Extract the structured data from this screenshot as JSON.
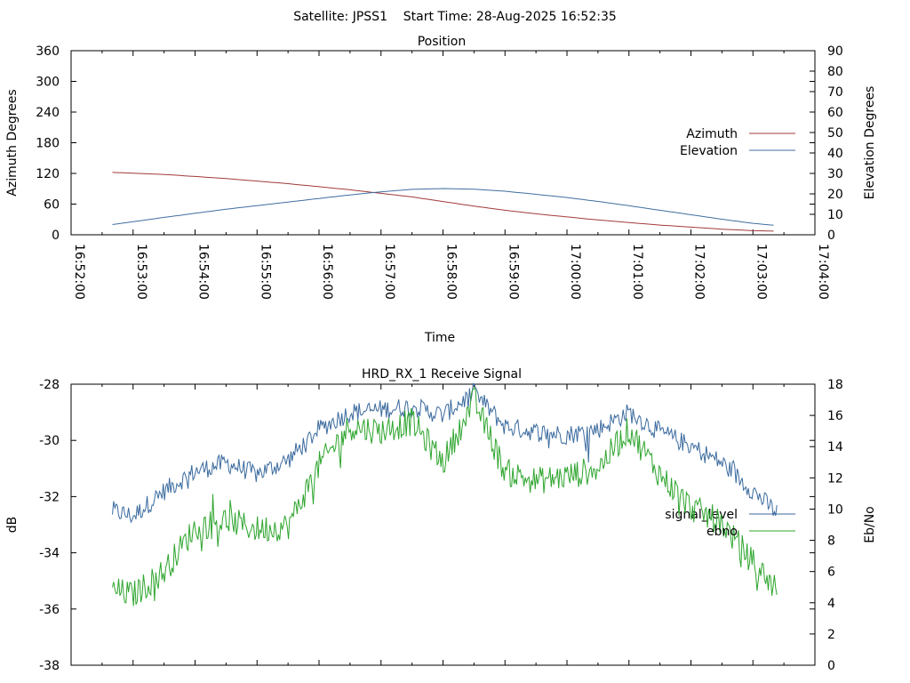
{
  "header": {
    "title": "Satellite: JPSS1    Start Time: 28-Aug-2025 16:52:35"
  },
  "chart_data": [
    {
      "type": "line",
      "title": "Position",
      "xlabel": "Time",
      "ylabel": "Azimuth Degrees",
      "y2label": "Elevation Degrees",
      "x_ticks": [
        "16:52:00",
        "16:53:00",
        "16:54:00",
        "16:55:00",
        "16:56:00",
        "16:57:00",
        "16:58:00",
        "16:59:00",
        "17:00:00",
        "17:01:00",
        "17:02:00",
        "17:03:00",
        "17:04:00"
      ],
      "xlim": [
        "16:52:00",
        "17:04:00"
      ],
      "ylim": [
        0,
        360
      ],
      "y_ticks": [
        "0",
        "60",
        "120",
        "180",
        "240",
        "300",
        "360"
      ],
      "y2lim": [
        0,
        90
      ],
      "y2_ticks": [
        "0",
        "10",
        "20",
        "30",
        "40",
        "50",
        "60",
        "70",
        "80",
        "90"
      ],
      "legend": "right",
      "x": [
        "16:52:40",
        "16:53:30",
        "16:54:30",
        "16:55:30",
        "16:56:30",
        "16:57:00",
        "16:57:30",
        "16:58:00",
        "16:58:30",
        "16:59:00",
        "16:59:30",
        "17:00:00",
        "17:00:30",
        "17:01:00",
        "17:01:30",
        "17:02:00",
        "17:02:30",
        "17:03:00",
        "17:03:24"
      ],
      "series": [
        {
          "name": "Azimuth",
          "color": "#a33a3a",
          "axis": "y",
          "values": [
            122,
            118,
            110,
            100,
            88,
            81,
            74,
            65,
            56,
            48,
            41,
            35,
            29,
            24,
            19,
            15,
            11,
            8,
            7
          ]
        },
        {
          "name": "Elevation",
          "color": "#3f6fa0",
          "axis": "y2",
          "values": [
            5,
            8.5,
            12.5,
            16,
            19.5,
            21,
            22.2,
            22.6,
            22.3,
            21.3,
            19.8,
            18.2,
            16.3,
            14.2,
            12,
            9.8,
            7.6,
            5.6,
            4.5
          ]
        }
      ]
    },
    {
      "type": "line",
      "title": "HRD_RX_1 Receive Signal",
      "xlabel": "",
      "ylabel": "dB",
      "y2label": "Eb/No",
      "ylim": [
        -38,
        -28
      ],
      "y_ticks": [
        "-28",
        "-30",
        "-32",
        "-34",
        "-36",
        "-38"
      ],
      "y2lim": [
        0,
        18
      ],
      "y2_ticks": [
        "0",
        "2",
        "4",
        "6",
        "8",
        "10",
        "12",
        "14",
        "16",
        "18"
      ],
      "legend": "right",
      "x": [
        "16:52:40",
        "16:53:00",
        "16:53:30",
        "16:54:00",
        "16:54:30",
        "16:55:00",
        "16:55:30",
        "16:56:00",
        "16:56:30",
        "16:57:00",
        "16:57:30",
        "16:58:00",
        "16:58:30",
        "16:59:00",
        "16:59:30",
        "17:00:00",
        "17:00:30",
        "17:01:00",
        "17:01:30",
        "17:02:00",
        "17:02:30",
        "17:03:00",
        "17:03:24"
      ],
      "series": [
        {
          "name": "signal_level",
          "color": "#3a6a9e",
          "axis": "y",
          "values": [
            -32.5,
            -32.7,
            -31.8,
            -31.1,
            -30.8,
            -31.2,
            -30.7,
            -29.6,
            -29.0,
            -28.9,
            -28.8,
            -29.1,
            -28.3,
            -29.5,
            -29.7,
            -29.8,
            -29.6,
            -29.0,
            -29.7,
            -30.2,
            -30.8,
            -31.8,
            -32.6
          ],
          "noise": 0.35
        },
        {
          "name": "ebno",
          "color": "#2ea52e",
          "axis": "y2",
          "values": [
            4.8,
            4.5,
            6.0,
            8.8,
            9.3,
            8.7,
            8.9,
            12.8,
            15.3,
            15.0,
            15.6,
            13.0,
            17.0,
            12.4,
            11.8,
            12.1,
            12.6,
            15.1,
            12.2,
            10.1,
            9.1,
            6.6,
            4.8
          ],
          "noise": 0.9
        }
      ]
    }
  ]
}
